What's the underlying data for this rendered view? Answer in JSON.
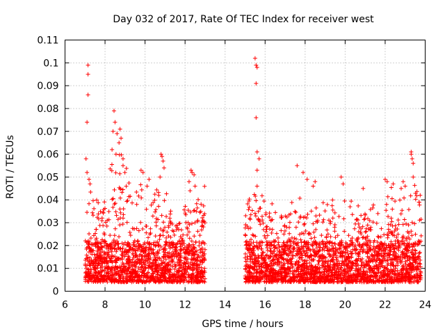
{
  "chart_data": {
    "type": "scatter",
    "title": "Day 032 of 2017, Rate Of TEC Index for receiver west",
    "xlabel": "GPS time / hours",
    "ylabel": "ROTI / TECUs",
    "xlim": [
      6,
      24
    ],
    "ylim": [
      0,
      0.11
    ],
    "xticks": [
      "6",
      "8",
      "10",
      "12",
      "14",
      "16",
      "18",
      "20",
      "22",
      "24"
    ],
    "yticks": [
      "0",
      "0.01",
      "0.02",
      "0.03",
      "0.04",
      "0.05",
      "0.06",
      "0.07",
      "0.08",
      "0.09",
      "0.1",
      "0.11"
    ],
    "grid": true,
    "marker": "+",
    "series": [
      {
        "name": "ROTI",
        "color": "#ff0000",
        "segments": [
          [
            7.0,
            13.0
          ],
          [
            15.0,
            23.8
          ]
        ],
        "points": [
          [
            7.15,
            0.099
          ],
          [
            7.15,
            0.095
          ],
          [
            7.15,
            0.086
          ],
          [
            7.1,
            0.074
          ],
          [
            7.05,
            0.058
          ],
          [
            7.1,
            0.052
          ],
          [
            7.2,
            0.049
          ],
          [
            7.25,
            0.047
          ],
          [
            8.45,
            0.079
          ],
          [
            8.5,
            0.074
          ],
          [
            8.4,
            0.07
          ],
          [
            8.6,
            0.069
          ],
          [
            8.75,
            0.071
          ],
          [
            8.8,
            0.067
          ],
          [
            8.7,
            0.065
          ],
          [
            8.35,
            0.062
          ],
          [
            8.55,
            0.06
          ],
          [
            8.9,
            0.058
          ],
          [
            8.9,
            0.055
          ],
          [
            9.8,
            0.053
          ],
          [
            9.9,
            0.052
          ],
          [
            10.2,
            0.049
          ],
          [
            10.1,
            0.046
          ],
          [
            10.8,
            0.06
          ],
          [
            10.85,
            0.059
          ],
          [
            10.9,
            0.057
          ],
          [
            10.95,
            0.054
          ],
          [
            10.75,
            0.05
          ],
          [
            12.3,
            0.053
          ],
          [
            12.35,
            0.052
          ],
          [
            12.45,
            0.051
          ],
          [
            12.2,
            0.048
          ],
          [
            12.5,
            0.046
          ],
          [
            12.25,
            0.044
          ],
          [
            15.5,
            0.102
          ],
          [
            15.55,
            0.099
          ],
          [
            15.6,
            0.098
          ],
          [
            15.55,
            0.091
          ],
          [
            15.55,
            0.076
          ],
          [
            15.6,
            0.061
          ],
          [
            15.7,
            0.058
          ],
          [
            15.6,
            0.053
          ],
          [
            15.6,
            0.046
          ],
          [
            17.6,
            0.055
          ],
          [
            17.9,
            0.052
          ],
          [
            18.1,
            0.049
          ],
          [
            18.4,
            0.046
          ],
          [
            18.5,
            0.048
          ],
          [
            19.8,
            0.05
          ],
          [
            19.9,
            0.047
          ],
          [
            20.9,
            0.045
          ],
          [
            22.0,
            0.049
          ],
          [
            22.1,
            0.048
          ],
          [
            22.4,
            0.047
          ],
          [
            22.8,
            0.045
          ],
          [
            22.9,
            0.048
          ],
          [
            23.0,
            0.046
          ],
          [
            23.3,
            0.061
          ],
          [
            23.3,
            0.06
          ],
          [
            23.35,
            0.058
          ],
          [
            23.4,
            0.056
          ],
          [
            23.4,
            0.05
          ],
          [
            23.75,
            0.042
          ],
          [
            23.7,
            0.039
          ]
        ]
      }
    ]
  }
}
